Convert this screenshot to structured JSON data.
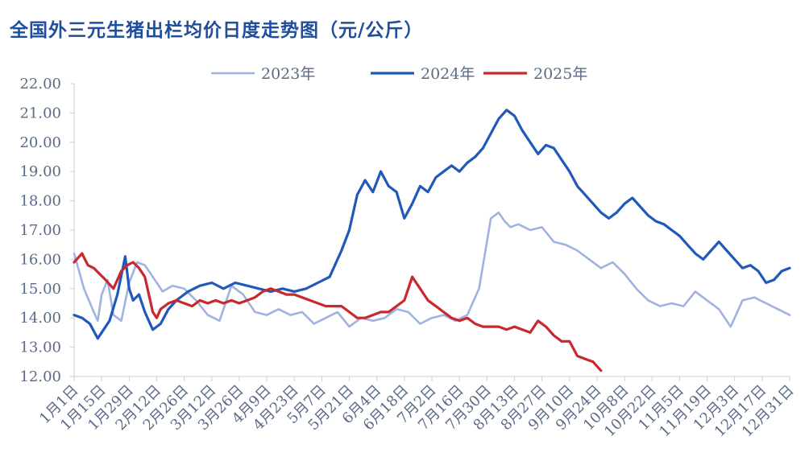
{
  "chart_data": {
    "type": "line",
    "title": "全国外三元生猪出栏均价日度走势图（元/公斤）",
    "xlabel": "",
    "ylabel": "",
    "ylim": [
      12.0,
      22.0
    ],
    "yticks": [
      "12.00",
      "13.00",
      "14.00",
      "15.00",
      "16.00",
      "17.00",
      "18.00",
      "19.00",
      "20.00",
      "21.00",
      "22.00"
    ],
    "xticks": [
      "1月1日",
      "1月15日",
      "1月29日",
      "2月12日",
      "2月26日",
      "3月12日",
      "3月26日",
      "4月9日",
      "4月23日",
      "5月7日",
      "5月21日",
      "6月4日",
      "6月18日",
      "7月2日",
      "7月16日",
      "7月30日",
      "8月13日",
      "8月27日",
      "9月10日",
      "9月24日",
      "10月8日",
      "10月22日",
      "11月5日",
      "11月19日",
      "12月3日",
      "12月17日",
      "12月31日"
    ],
    "legend_position": "top-center",
    "series": [
      {
        "name": "2023年",
        "color": "#9fb2e0",
        "x": [
          0,
          5,
          10,
          12,
          14,
          17,
          20,
          24,
          28,
          32,
          36,
          40,
          45,
          50,
          56,
          62,
          68,
          74,
          80,
          86,
          92,
          98,
          104,
          110,
          116,
          122,
          128,
          134,
          140,
          146,
          152,
          158,
          164,
          170,
          176,
          182,
          188,
          194,
          200,
          206,
          212,
          216,
          219,
          222,
          226,
          232,
          238,
          244,
          250,
          256,
          262,
          268,
          274,
          280,
          286,
          292,
          298,
          304,
          310,
          316,
          322,
          328,
          334,
          340,
          346,
          352,
          358,
          364
        ],
        "values": [
          16.2,
          15.0,
          14.2,
          13.9,
          14.8,
          15.3,
          14.1,
          13.9,
          15.2,
          15.9,
          15.8,
          15.4,
          14.9,
          15.1,
          15.0,
          14.6,
          14.1,
          13.9,
          15.1,
          14.8,
          14.2,
          14.1,
          14.3,
          14.1,
          14.2,
          13.8,
          14.0,
          14.2,
          13.7,
          14.0,
          13.9,
          14.0,
          14.3,
          14.2,
          13.8,
          14.0,
          14.1,
          13.9,
          14.1,
          15.0,
          17.4,
          17.6,
          17.3,
          17.1,
          17.2,
          17.0,
          17.1,
          16.6,
          16.5,
          16.3,
          16.0,
          15.7,
          15.9,
          15.5,
          15.0,
          14.6,
          14.4,
          14.5,
          14.4,
          14.9,
          14.6,
          14.3,
          13.7,
          14.6,
          14.7,
          14.5,
          14.3,
          14.1
        ]
      },
      {
        "name": "2024年",
        "color": "#2059b8",
        "x": [
          0,
          4,
          8,
          12,
          15,
          18,
          22,
          26,
          28,
          30,
          33,
          36,
          40,
          44,
          48,
          52,
          58,
          64,
          70,
          76,
          82,
          88,
          94,
          100,
          106,
          112,
          118,
          124,
          130,
          136,
          140,
          144,
          148,
          152,
          156,
          160,
          164,
          168,
          172,
          176,
          180,
          184,
          188,
          192,
          196,
          200,
          204,
          208,
          212,
          216,
          220,
          224,
          228,
          232,
          236,
          240,
          244,
          248,
          252,
          256,
          260,
          264,
          268,
          272,
          276,
          280,
          284,
          288,
          292,
          296,
          300,
          304,
          308,
          312,
          316,
          320,
          324,
          328,
          332,
          336,
          340,
          344,
          348,
          352,
          356,
          360,
          364
        ],
        "values": [
          14.1,
          14.0,
          13.8,
          13.3,
          13.6,
          13.9,
          14.8,
          16.1,
          15.0,
          14.6,
          14.8,
          14.2,
          13.6,
          13.8,
          14.3,
          14.6,
          14.9,
          15.1,
          15.2,
          15.0,
          15.2,
          15.1,
          15.0,
          14.9,
          15.0,
          14.9,
          15.0,
          15.2,
          15.4,
          16.3,
          17.0,
          18.2,
          18.7,
          18.3,
          19.0,
          18.5,
          18.3,
          17.4,
          17.9,
          18.5,
          18.3,
          18.8,
          19.0,
          19.2,
          19.0,
          19.3,
          19.5,
          19.8,
          20.3,
          20.8,
          21.1,
          20.9,
          20.4,
          20.0,
          19.6,
          19.9,
          19.8,
          19.4,
          19.0,
          18.5,
          18.2,
          17.9,
          17.6,
          17.4,
          17.6,
          17.9,
          18.1,
          17.8,
          17.5,
          17.3,
          17.2,
          17.0,
          16.8,
          16.5,
          16.2,
          16.0,
          16.3,
          16.6,
          16.3,
          16.0,
          15.7,
          15.8,
          15.6,
          15.2,
          15.3,
          15.6,
          15.7
        ]
      },
      {
        "name": "2025年",
        "color": "#c8282e",
        "x": [
          0,
          4,
          7,
          10,
          13,
          16,
          20,
          24,
          27,
          30,
          33,
          36,
          38,
          40,
          42,
          44,
          48,
          52,
          56,
          60,
          64,
          68,
          72,
          76,
          80,
          84,
          88,
          92,
          96,
          100,
          104,
          108,
          112,
          116,
          120,
          124,
          128,
          132,
          136,
          140,
          144,
          148,
          152,
          156,
          160,
          164,
          168,
          172,
          176,
          180,
          184,
          188,
          192,
          196,
          200,
          204,
          208,
          212,
          216,
          220,
          224,
          228,
          232,
          236,
          240,
          244,
          248,
          252,
          256,
          260,
          264,
          268
        ],
        "values": [
          15.9,
          16.2,
          15.8,
          15.7,
          15.5,
          15.3,
          15.0,
          15.6,
          15.8,
          15.9,
          15.7,
          15.4,
          14.8,
          14.2,
          14.0,
          14.3,
          14.5,
          14.6,
          14.5,
          14.4,
          14.6,
          14.5,
          14.6,
          14.5,
          14.6,
          14.5,
          14.6,
          14.7,
          14.9,
          15.0,
          14.9,
          14.8,
          14.8,
          14.7,
          14.6,
          14.5,
          14.4,
          14.4,
          14.4,
          14.2,
          14.0,
          14.0,
          14.1,
          14.2,
          14.2,
          14.4,
          14.6,
          15.4,
          15.0,
          14.6,
          14.4,
          14.2,
          14.0,
          13.9,
          14.0,
          13.8,
          13.7,
          13.7,
          13.7,
          13.6,
          13.7,
          13.6,
          13.5,
          13.9,
          13.7,
          13.4,
          13.2,
          13.2,
          12.7,
          12.6,
          12.5,
          12.2
        ]
      }
    ]
  }
}
